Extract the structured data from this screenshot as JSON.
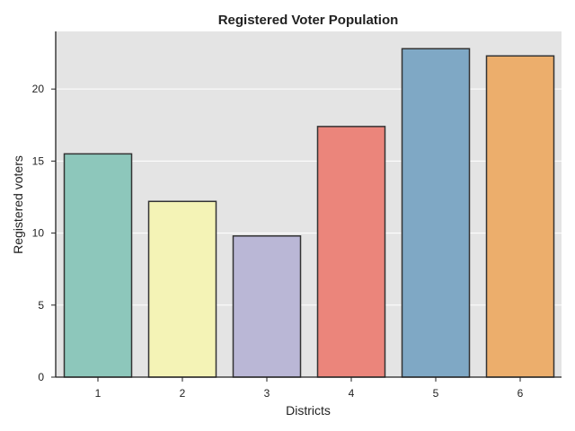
{
  "chart_data": {
    "type": "bar",
    "title": "Registered Voter Population",
    "xlabel": "Districts",
    "ylabel": "Registered voters",
    "categories": [
      "1",
      "2",
      "3",
      "4",
      "5",
      "6"
    ],
    "values": [
      15.5,
      12.2,
      9.8,
      17.4,
      22.8,
      22.3
    ],
    "colors": [
      "#8dc7bb",
      "#f4f3b6",
      "#bab7d6",
      "#eb857b",
      "#7fa8c5",
      "#ecae6c"
    ],
    "edge_color": "#333333",
    "background_color": "#e4e4e4",
    "grid": true,
    "ylim": [
      0,
      24
    ],
    "yticks": [
      0,
      5,
      10,
      15,
      20
    ],
    "ytick_labels": [
      "0",
      "5",
      "10",
      "15",
      "20"
    ]
  }
}
